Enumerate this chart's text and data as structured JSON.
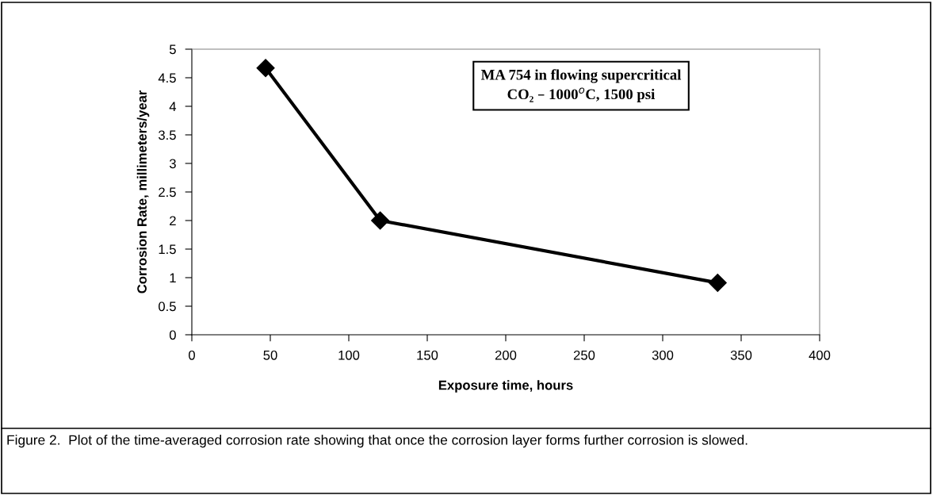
{
  "chart_data": {
    "type": "line",
    "xlabel": "Exposure time, hours",
    "ylabel": "Corrosion Rate, millimeters/year",
    "x": [
      47,
      120,
      335
    ],
    "series": [
      {
        "color": "#000000",
        "values": [
          4.67,
          2.0,
          0.91
        ]
      }
    ],
    "xlim": [
      0,
      400
    ],
    "xticks": [
      0,
      50,
      100,
      150,
      200,
      250,
      300,
      350,
      400
    ],
    "ylim": [
      0,
      5
    ],
    "yticks": [
      0,
      0.5,
      1,
      1.5,
      2,
      2.5,
      3,
      3.5,
      4,
      4.5,
      5
    ],
    "marker": "diamond",
    "line_style": "solid",
    "grid": false,
    "legend": false,
    "annotations": [
      "MA 754 in flowing supercritical\nCO₂ – 1000$^{o}$C, 1500 psi",
      "Figure 2.  Plot of the time-averaged corrosion rate showing that once the corrosion layer forms further corrosion is slowed."
    ]
  }
}
